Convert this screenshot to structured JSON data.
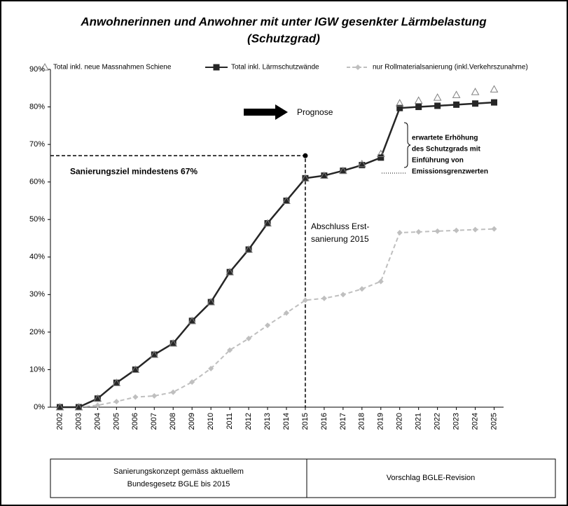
{
  "chart_data": {
    "type": "line",
    "title": [
      "Anwohnerinnen und Anwohner mit unter IGW gesenkter Lärmbelastung",
      "(Schutzgrad)"
    ],
    "categories": [
      "2002",
      "2003",
      "2004",
      "2005",
      "2006",
      "2007",
      "2008",
      "2009",
      "2010",
      "2011",
      "2012",
      "2013",
      "2014",
      "2015",
      "2016",
      "2017",
      "2018",
      "2019",
      "2020",
      "2021",
      "2022",
      "2023",
      "2024",
      "2025"
    ],
    "series": [
      {
        "name": "Total inkl. neue Massnahmen  Schiene",
        "color": "#808080",
        "marker": "triangle",
        "values": [
          0,
          0,
          2.3,
          6.5,
          10,
          14,
          17,
          23,
          28,
          36,
          42,
          49,
          55,
          61,
          61.7,
          63,
          64.8,
          67.5,
          81,
          81.7,
          82.5,
          83.2,
          84,
          84.7
        ]
      },
      {
        "name": "Total inkl. Lärmschutzwände",
        "color": "#262626",
        "marker": "square",
        "values": [
          0,
          0,
          2.3,
          6.5,
          10,
          14,
          17,
          23,
          28,
          36,
          42,
          49,
          55,
          61,
          61.7,
          63,
          64.5,
          66.5,
          79.7,
          80,
          80.3,
          80.6,
          80.9,
          81.2
        ]
      },
      {
        "name": "nur Rollmaterialsanierung (inkl.Verkehrszunahme)",
        "color": "#bfbfbf",
        "marker": "diamond",
        "dashed": true,
        "values": [
          null,
          0,
          0.5,
          1.5,
          2.7,
          3,
          4,
          6.7,
          10.3,
          15.2,
          18.3,
          21.8,
          25.1,
          28.5,
          29,
          30,
          31.5,
          33.5,
          46.5,
          46.7,
          46.9,
          47.1,
          47.3,
          47.5
        ]
      }
    ],
    "ylim": [
      0,
      90
    ],
    "yticks": [
      {
        "value": 0,
        "label": "0%"
      },
      {
        "value": 10,
        "label": "10%"
      },
      {
        "value": 20,
        "label": "20%"
      },
      {
        "value": 30,
        "label": "30%"
      },
      {
        "value": 40,
        "label": "40%"
      },
      {
        "value": 50,
        "label": "50%"
      },
      {
        "value": 60,
        "label": "60%"
      },
      {
        "value": 70,
        "label": "70%"
      },
      {
        "value": 80,
        "label": "80%"
      },
      {
        "value": 90,
        "label": "90%"
      }
    ],
    "grid": false,
    "reference_line": {
      "value": 67,
      "category": "2015",
      "label": "Sanierungsziel mindestens 67%"
    },
    "annotations": {
      "forecast": "Prognose",
      "completion": [
        "Abschluss Erst-",
        "sanierung 2015"
      ],
      "increase": [
        "erwartete Erhöhung",
        "des Schutzgrads  mit",
        "Einführung von",
        "Emissionsgrenzwerten"
      ]
    },
    "footer_table": [
      [
        "Sanierungskonzept gemäss aktuellem",
        "Bundesgesetz BGLE bis 2015"
      ],
      [
        "Vorschlag BGLE-Revision"
      ]
    ]
  }
}
